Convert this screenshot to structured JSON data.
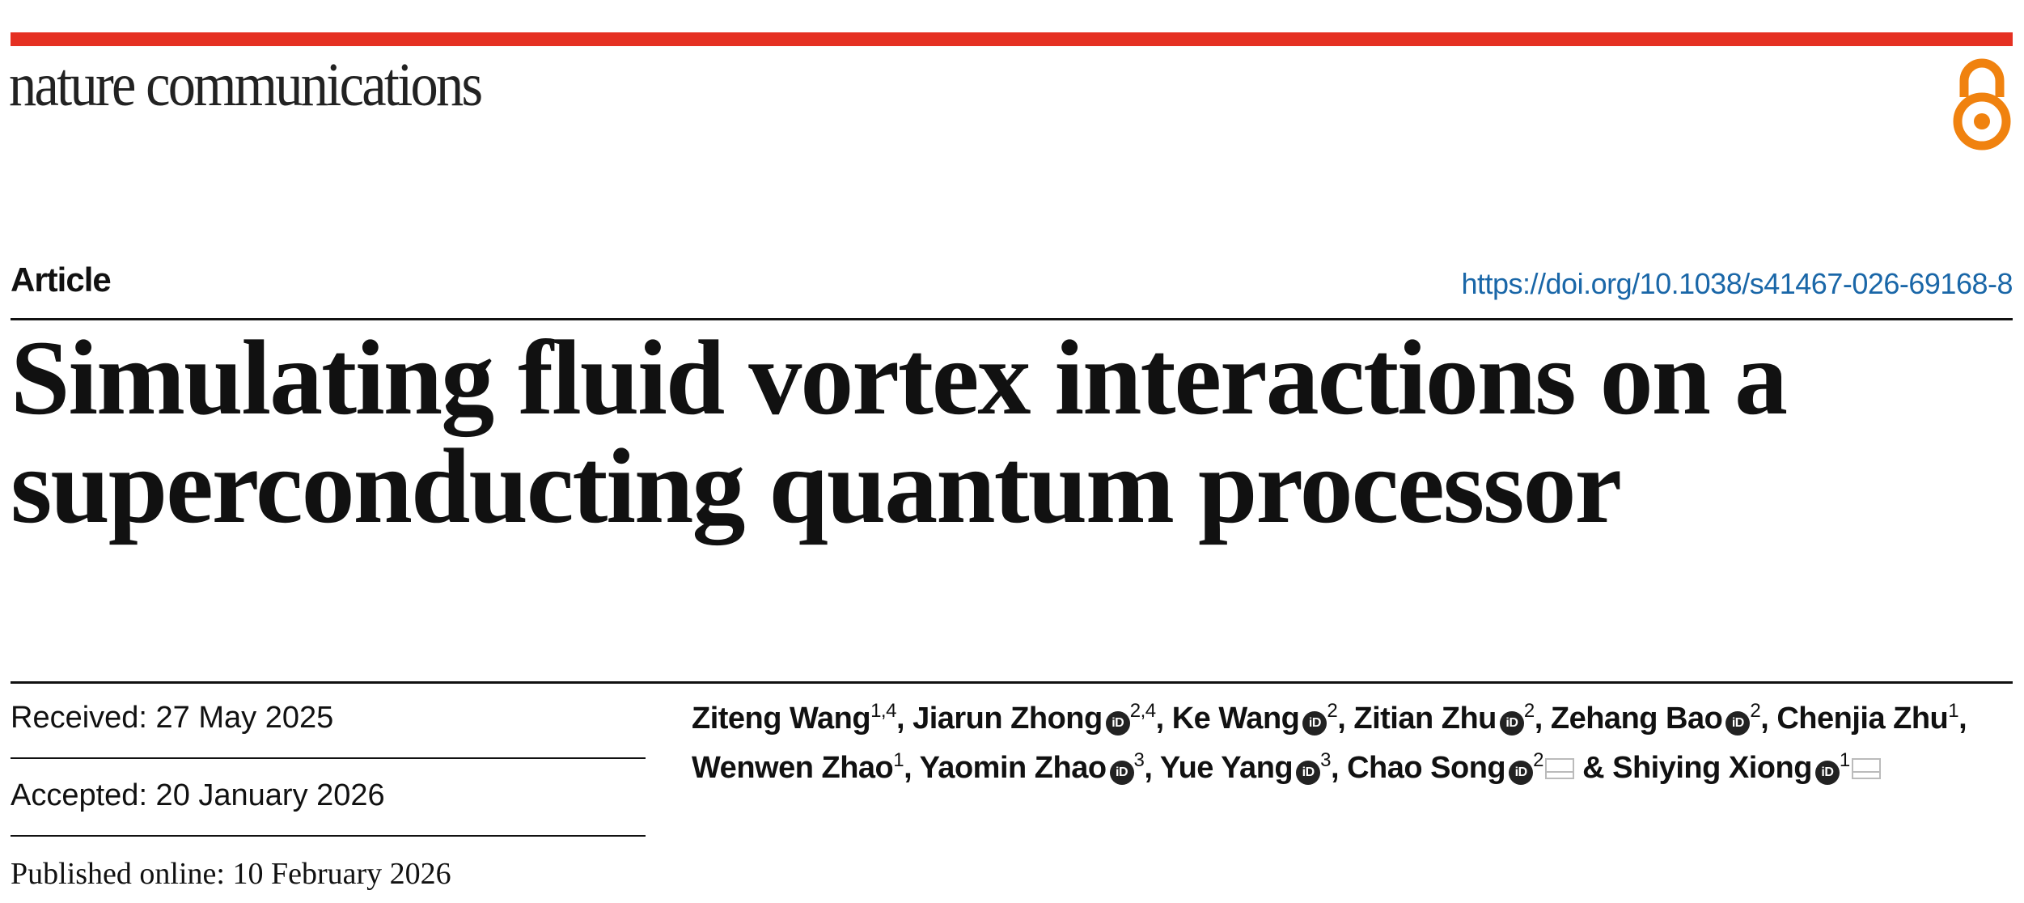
{
  "journal": {
    "name": "nature communications",
    "brand_color": "#e53022",
    "open_access_icon": "open-access-icon",
    "open_access_color": "#f0820f"
  },
  "article": {
    "type": "Article",
    "doi": "https://doi.org/10.1038/s41467-026-69168-8",
    "title_line1": "Simulating fluid vortex interactions on a",
    "title_line2": "superconducting quantum processor"
  },
  "dates": {
    "received": "Received: 27 May 2025",
    "accepted": "Accepted: 20 January 2026",
    "published": "Published online: 10 February 2026"
  },
  "authors": [
    {
      "name": "Ziteng Wang",
      "aff": "1,4",
      "orcid": false,
      "mail": false
    },
    {
      "name": "Jiarun Zhong",
      "aff": "2,4",
      "orcid": true,
      "mail": false
    },
    {
      "name": "Ke Wang",
      "aff": "2",
      "orcid": true,
      "mail": false
    },
    {
      "name": "Zitian Zhu",
      "aff": "2",
      "orcid": true,
      "mail": false
    },
    {
      "name": "Zehang Bao",
      "aff": "2",
      "orcid": true,
      "mail": false
    },
    {
      "name": "Chenjia Zhu",
      "aff": "1",
      "orcid": false,
      "mail": false
    },
    {
      "name": "Wenwen Zhao",
      "aff": "1",
      "orcid": false,
      "mail": false
    },
    {
      "name": "Yaomin Zhao",
      "aff": "3",
      "orcid": true,
      "mail": false
    },
    {
      "name": "Yue Yang",
      "aff": "3",
      "orcid": true,
      "mail": false
    },
    {
      "name": "Chao Song",
      "aff": "2",
      "orcid": true,
      "mail": true
    },
    {
      "name": "Shiying Xiong",
      "aff": "1",
      "orcid": true,
      "mail": true
    }
  ],
  "orcid_label": "iD",
  "ampersand": "&"
}
